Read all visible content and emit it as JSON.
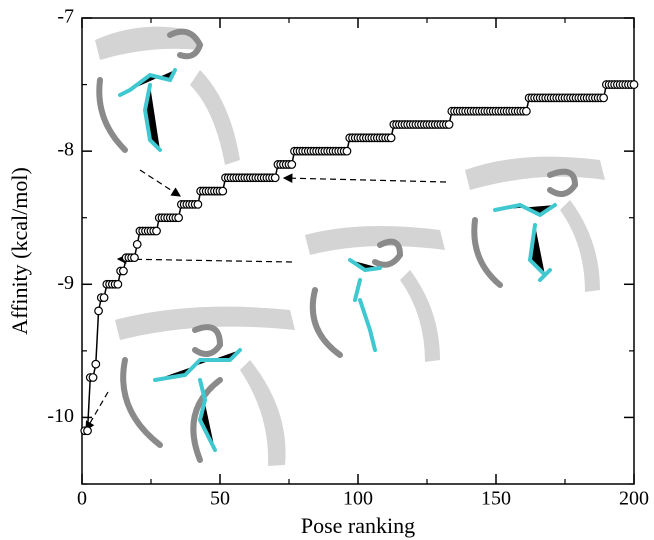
{
  "chart_data": {
    "type": "line",
    "xlabel": "Pose ranking",
    "ylabel": "Affinity (kcal/mol)",
    "x": [
      1,
      2,
      3,
      4,
      5,
      6,
      7,
      8,
      9,
      10,
      11,
      12,
      13,
      14,
      15,
      16,
      17,
      18,
      19,
      20,
      21,
      22,
      23,
      24,
      25,
      26,
      27,
      28,
      29,
      30,
      31,
      32,
      33,
      34,
      35,
      36,
      37,
      38,
      39,
      40,
      41,
      42,
      43,
      44,
      45,
      46,
      47,
      48,
      49,
      50,
      51,
      52,
      53,
      54,
      55,
      56,
      57,
      58,
      59,
      60,
      61,
      62,
      63,
      64,
      65,
      66,
      67,
      68,
      69,
      70,
      71,
      72,
      73,
      74,
      75,
      76,
      77,
      78,
      79,
      80,
      81,
      82,
      83,
      84,
      85,
      86,
      87,
      88,
      89,
      90,
      91,
      92,
      93,
      94,
      95,
      96,
      97,
      98,
      99,
      100,
      101,
      102,
      103,
      104,
      105,
      106,
      107,
      108,
      109,
      110,
      111,
      112,
      113,
      114,
      115,
      116,
      117,
      118,
      119,
      120,
      121,
      122,
      123,
      124,
      125,
      126,
      127,
      128,
      129,
      130,
      131,
      132,
      133,
      134,
      135,
      136,
      137,
      138,
      139,
      140,
      141,
      142,
      143,
      144,
      145,
      146,
      147,
      148,
      149,
      150,
      151,
      152,
      153,
      154,
      155,
      156,
      157,
      158,
      159,
      160,
      161,
      162,
      163,
      164,
      165,
      166,
      167,
      168,
      169,
      170,
      171,
      172,
      173,
      174,
      175,
      176,
      177,
      178,
      179,
      180,
      181,
      182,
      183,
      184,
      185,
      186,
      187,
      188,
      189,
      190,
      191,
      192,
      193,
      194,
      195,
      196,
      197,
      198,
      199,
      200
    ],
    "values": [
      -10.1,
      -10.1,
      -9.7,
      -9.7,
      -9.6,
      -9.2,
      -9.1,
      -9.1,
      -9,
      -9,
      -9,
      -9,
      -9,
      -8.9,
      -8.9,
      -8.8,
      -8.8,
      -8.8,
      -8.8,
      -8.7,
      -8.6,
      -8.6,
      -8.6,
      -8.6,
      -8.6,
      -8.6,
      -8.6,
      -8.5,
      -8.5,
      -8.5,
      -8.5,
      -8.5,
      -8.5,
      -8.5,
      -8.5,
      -8.4,
      -8.4,
      -8.4,
      -8.4,
      -8.4,
      -8.4,
      -8.4,
      -8.3,
      -8.3,
      -8.3,
      -8.3,
      -8.3,
      -8.3,
      -8.3,
      -8.3,
      -8.3,
      -8.2,
      -8.2,
      -8.2,
      -8.2,
      -8.2,
      -8.2,
      -8.2,
      -8.2,
      -8.2,
      -8.2,
      -8.2,
      -8.2,
      -8.2,
      -8.2,
      -8.2,
      -8.2,
      -8.2,
      -8.2,
      -8.2,
      -8.1,
      -8.1,
      -8.1,
      -8.1,
      -8.1,
      -8.1,
      -8,
      -8,
      -8,
      -8,
      -8,
      -8,
      -8,
      -8,
      -8,
      -8,
      -8,
      -8,
      -8,
      -8,
      -8,
      -8,
      -8,
      -8,
      -8,
      -8,
      -7.9,
      -7.9,
      -7.9,
      -7.9,
      -7.9,
      -7.9,
      -7.9,
      -7.9,
      -7.9,
      -7.9,
      -7.9,
      -7.9,
      -7.9,
      -7.9,
      -7.9,
      -7.9,
      -7.8,
      -7.8,
      -7.8,
      -7.8,
      -7.8,
      -7.8,
      -7.8,
      -7.8,
      -7.8,
      -7.8,
      -7.8,
      -7.8,
      -7.8,
      -7.8,
      -7.8,
      -7.8,
      -7.8,
      -7.8,
      -7.8,
      -7.8,
      -7.8,
      -7.7,
      -7.7,
      -7.7,
      -7.7,
      -7.7,
      -7.7,
      -7.7,
      -7.7,
      -7.7,
      -7.7,
      -7.7,
      -7.7,
      -7.7,
      -7.7,
      -7.7,
      -7.7,
      -7.7,
      -7.7,
      -7.7,
      -7.7,
      -7.7,
      -7.7,
      -7.7,
      -7.7,
      -7.7,
      -7.7,
      -7.7,
      -7.7,
      -7.6,
      -7.6,
      -7.6,
      -7.6,
      -7.6,
      -7.6,
      -7.6,
      -7.6,
      -7.6,
      -7.6,
      -7.6,
      -7.6,
      -7.6,
      -7.6,
      -7.6,
      -7.6,
      -7.6,
      -7.6,
      -7.6,
      -7.6,
      -7.6,
      -7.6,
      -7.6,
      -7.6,
      -7.6,
      -7.6,
      -7.6,
      -7.6,
      -7.5,
      -7.5,
      -7.5,
      -7.5,
      -7.5,
      -7.5,
      -7.5,
      -7.5,
      -7.5,
      -7.5,
      -7.5
    ],
    "color": "#000000",
    "xlim": [
      0,
      200
    ],
    "xticks": [
      0,
      50,
      100,
      150,
      200
    ],
    "xminor_ticks": [
      25,
      75,
      125,
      175
    ],
    "ylim": [
      -10.5,
      -7
    ],
    "yticks": [
      -10,
      -9,
      -8,
      -7
    ],
    "yminor_ticks": [
      -10.5,
      -9.5,
      -8.5,
      -7.5
    ]
  }
}
